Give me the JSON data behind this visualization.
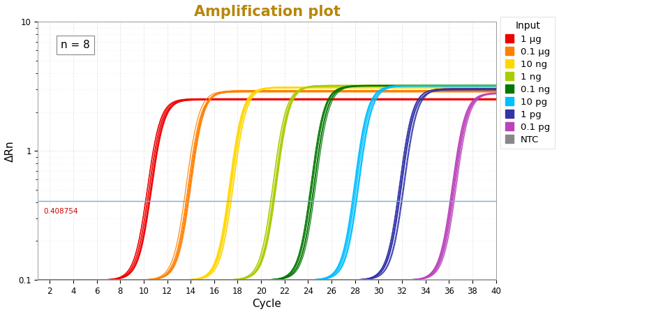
{
  "title": "Amplification plot",
  "title_color": "#B8860B",
  "xlabel": "Cycle",
  "ylabel": "ΔRn",
  "xlim": [
    1,
    40
  ],
  "ylim_log": [
    0.1,
    10
  ],
  "xticks": [
    2,
    4,
    6,
    8,
    10,
    12,
    14,
    16,
    18,
    20,
    22,
    24,
    26,
    28,
    30,
    32,
    34,
    36,
    38,
    40
  ],
  "threshold": 0.408754,
  "threshold_color": "#6EB4D4",
  "n_label": "n = 8",
  "background_color": "#FFFFFF",
  "grid_color": "#CCCCCC",
  "series": [
    {
      "label": "1 μg",
      "color": "#EE0000",
      "midpoint": 10.5,
      "plateau": 2.5,
      "slope": 1.8
    },
    {
      "label": "0.1 μg",
      "color": "#FF8000",
      "midpoint": 13.8,
      "plateau": 2.9,
      "slope": 1.8
    },
    {
      "label": "10 ng",
      "color": "#FFD700",
      "midpoint": 17.5,
      "plateau": 3.1,
      "slope": 1.8
    },
    {
      "label": "1 ng",
      "color": "#AACC00",
      "midpoint": 21.2,
      "plateau": 3.2,
      "slope": 1.8
    },
    {
      "label": "0.1 ng",
      "color": "#007700",
      "midpoint": 24.5,
      "plateau": 3.2,
      "slope": 1.8
    },
    {
      "label": "10 pg",
      "color": "#00BFFF",
      "midpoint": 28.2,
      "plateau": 3.2,
      "slope": 1.8
    },
    {
      "label": "1 pg",
      "color": "#3333AA",
      "midpoint": 32.0,
      "plateau": 3.0,
      "slope": 1.8
    },
    {
      "label": "0.1 pg",
      "color": "#BB44BB",
      "midpoint": 36.5,
      "plateau": 2.8,
      "slope": 1.8
    },
    {
      "label": "NTC",
      "color": "#888888",
      "midpoint": 60.0,
      "plateau": 3.0,
      "slope": 1.8
    }
  ],
  "n_replicates": 8,
  "replicate_spread": 0.25
}
